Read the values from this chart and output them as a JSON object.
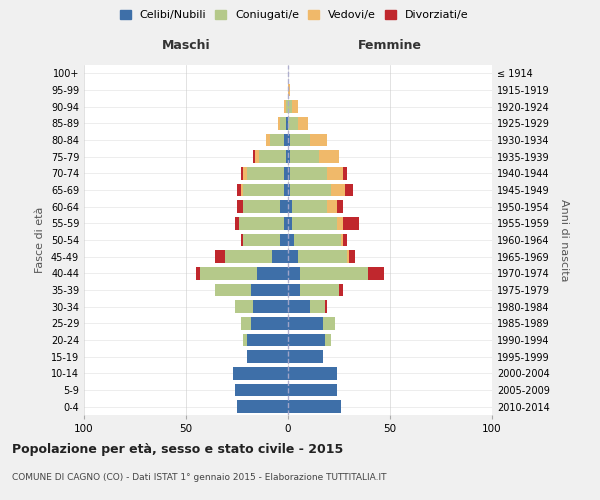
{
  "age_groups": [
    "0-4",
    "5-9",
    "10-14",
    "15-19",
    "20-24",
    "25-29",
    "30-34",
    "35-39",
    "40-44",
    "45-49",
    "50-54",
    "55-59",
    "60-64",
    "65-69",
    "70-74",
    "75-79",
    "80-84",
    "85-89",
    "90-94",
    "95-99",
    "100+"
  ],
  "birth_years": [
    "2010-2014",
    "2005-2009",
    "2000-2004",
    "1995-1999",
    "1990-1994",
    "1985-1989",
    "1980-1984",
    "1975-1979",
    "1970-1974",
    "1965-1969",
    "1960-1964",
    "1955-1959",
    "1950-1954",
    "1945-1949",
    "1940-1944",
    "1935-1939",
    "1930-1934",
    "1925-1929",
    "1920-1924",
    "1915-1919",
    "≤ 1914"
  ],
  "colors": {
    "celibe": "#3e6fa8",
    "coniugato": "#b5c98a",
    "vedovo": "#f0b96a",
    "divorziato": "#c0272d"
  },
  "maschi": {
    "celibe": [
      25,
      26,
      27,
      20,
      20,
      18,
      17,
      18,
      15,
      8,
      4,
      2,
      4,
      2,
      2,
      1,
      2,
      1,
      0,
      0,
      0
    ],
    "coniugato": [
      0,
      0,
      0,
      0,
      2,
      5,
      9,
      18,
      28,
      23,
      18,
      22,
      18,
      20,
      18,
      13,
      7,
      3,
      1,
      0,
      0
    ],
    "vedovo": [
      0,
      0,
      0,
      0,
      0,
      0,
      0,
      0,
      0,
      0,
      0,
      0,
      0,
      1,
      2,
      2,
      2,
      1,
      1,
      0,
      0
    ],
    "divorziato": [
      0,
      0,
      0,
      0,
      0,
      0,
      0,
      0,
      2,
      5,
      1,
      2,
      3,
      2,
      1,
      1,
      0,
      0,
      0,
      0,
      0
    ]
  },
  "femmine": {
    "nubile": [
      26,
      24,
      24,
      17,
      18,
      17,
      11,
      6,
      6,
      5,
      3,
      2,
      2,
      1,
      1,
      1,
      1,
      0,
      0,
      0,
      0
    ],
    "coniugata": [
      0,
      0,
      0,
      0,
      3,
      6,
      7,
      19,
      33,
      24,
      23,
      22,
      17,
      20,
      18,
      14,
      10,
      5,
      2,
      0,
      0
    ],
    "vedova": [
      0,
      0,
      0,
      0,
      0,
      0,
      0,
      0,
      0,
      1,
      1,
      3,
      5,
      7,
      8,
      10,
      8,
      5,
      3,
      1,
      0
    ],
    "divorziata": [
      0,
      0,
      0,
      0,
      0,
      0,
      1,
      2,
      8,
      3,
      2,
      8,
      3,
      4,
      2,
      0,
      0,
      0,
      0,
      0,
      0
    ]
  },
  "title": "Popolazione per età, sesso e stato civile - 2015",
  "subtitle": "COMUNE DI CAGNO (CO) - Dati ISTAT 1° gennaio 2015 - Elaborazione TUTTITALIA.IT",
  "xlabel_left": "Maschi",
  "xlabel_right": "Femmine",
  "ylabel_left": "Fasce di età",
  "ylabel_right": "Anni di nascita",
  "xlim": 100,
  "bg_color": "#f0f0f0",
  "plot_bg_color": "#ffffff",
  "grid_color": "#cccccc",
  "legend_labels": [
    "Celibi/Nubili",
    "Coniugati/e",
    "Vedovi/e",
    "Divorziati/e"
  ]
}
